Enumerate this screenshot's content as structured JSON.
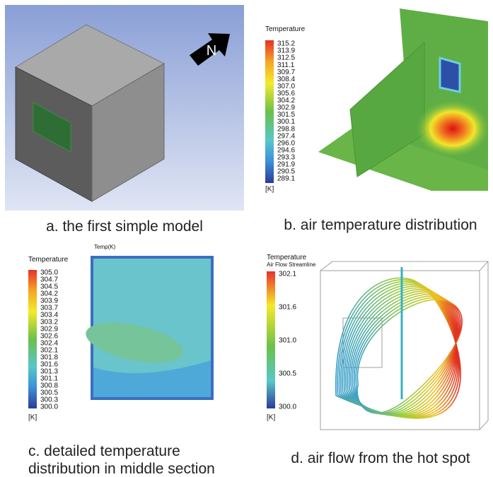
{
  "panels": {
    "a": {
      "compass": "N",
      "caption": "a. the first simple model"
    },
    "b": {
      "legend_title": "Temperature",
      "legend_labels": [
        "315.2",
        "313.9",
        "312.5",
        "311.1",
        "309.7",
        "308.4",
        "307.0",
        "305.6",
        "304.2",
        "302.9",
        "301.5",
        "300.1",
        "298.8",
        "297.4",
        "296.0",
        "294.6",
        "293.3",
        "291.9",
        "290.5",
        "289.1"
      ],
      "unit": "[K]",
      "caption": "b. air temperature distribution"
    },
    "c": {
      "legend_title": "Temperature",
      "plot_title": "Temp(K)",
      "legend_labels": [
        "305.0",
        "304.7",
        "304.5",
        "304.2",
        "303.9",
        "303.7",
        "303.4",
        "303.2",
        "302.9",
        "302.6",
        "302.4",
        "302.1",
        "301.8",
        "301.6",
        "301.3",
        "301.1",
        "300.8",
        "300.5",
        "300.3",
        "300.0"
      ],
      "unit": "[K]",
      "caption": [
        "c. detailed temperature",
        "distribution in middle section"
      ]
    },
    "d": {
      "legend_title": "Temperature",
      "legend_subtitle": "Air Flow Streamline",
      "legend_labels": [
        "302.1",
        "301.6",
        "301.0",
        "300.5",
        "300.0"
      ],
      "unit": "[K]",
      "caption": "d. air flow from the hot spot"
    }
  }
}
